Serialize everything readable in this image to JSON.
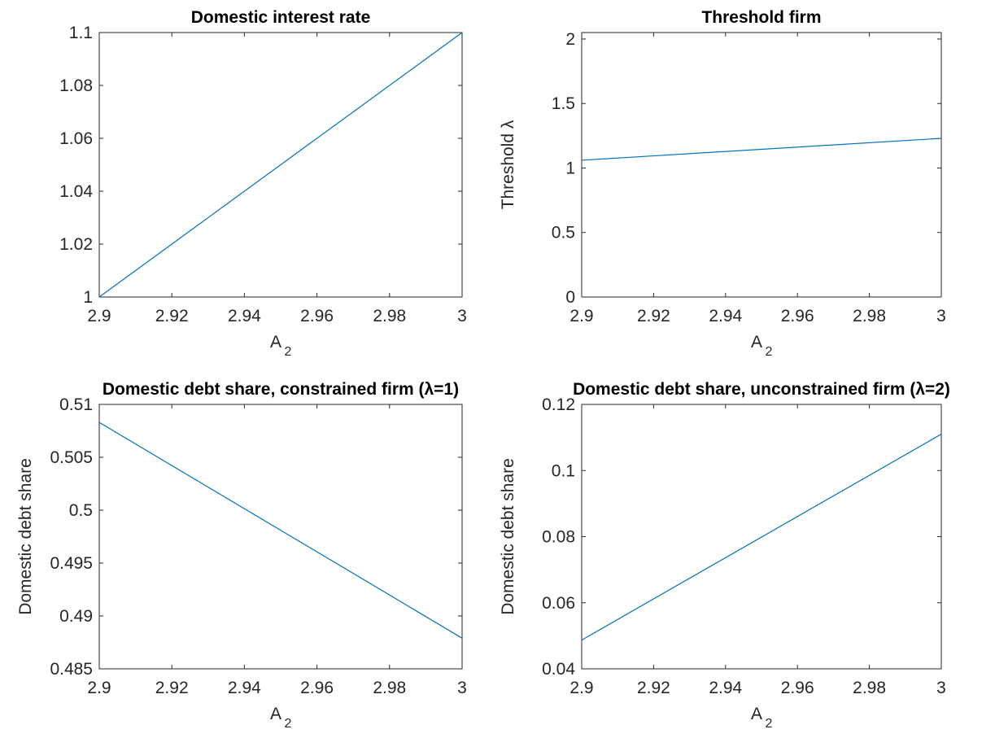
{
  "chart_data": [
    {
      "type": "line",
      "title": "Domestic interest rate",
      "xlabel": "A",
      "xlabel_subscript": "2",
      "x": [
        2.9,
        3
      ],
      "values": [
        1,
        1.1
      ],
      "color": "#0072bd",
      "xlim": [
        2.9,
        3
      ],
      "xticks": [
        2.9,
        2.92,
        2.94,
        2.96,
        2.98,
        3
      ],
      "ylim": [
        1,
        1.1
      ],
      "yticks": [
        1,
        1.02,
        1.04,
        1.06,
        1.08,
        1.1
      ]
    },
    {
      "type": "line",
      "title": "Threshold firm",
      "xlabel": "A",
      "xlabel_subscript": "2",
      "ylabel": "Threshold λ",
      "x": [
        2.9,
        3
      ],
      "values": [
        1.06,
        1.23
      ],
      "color": "#0072bd",
      "xlim": [
        2.9,
        3
      ],
      "xticks": [
        2.9,
        2.92,
        2.94,
        2.96,
        2.98,
        3
      ],
      "ylim": [
        0,
        2.05
      ],
      "yticks": [
        0,
        0.5,
        1,
        1.5,
        2
      ]
    },
    {
      "type": "line",
      "title": "Domestic debt share, constrained firm (λ=1)",
      "xlabel": "A",
      "xlabel_subscript": "2",
      "ylabel": "Domestic debt share",
      "x": [
        2.9,
        3
      ],
      "values": [
        0.5083,
        0.4879
      ],
      "color": "#0072bd",
      "xlim": [
        2.9,
        3
      ],
      "xticks": [
        2.9,
        2.92,
        2.94,
        2.96,
        2.98,
        3
      ],
      "ylim": [
        0.485,
        0.51
      ],
      "yticks": [
        0.485,
        0.49,
        0.495,
        0.5,
        0.505,
        0.51
      ]
    },
    {
      "type": "line",
      "title": "Domestic debt share, unconstrained firm (λ=2)",
      "xlabel": "A",
      "xlabel_subscript": "2",
      "ylabel": "Domestic debt share",
      "x": [
        2.9,
        3
      ],
      "values": [
        0.0487,
        0.111
      ],
      "color": "#0072bd",
      "xlim": [
        2.9,
        3
      ],
      "xticks": [
        2.9,
        2.92,
        2.94,
        2.96,
        2.98,
        3
      ],
      "ylim": [
        0.04,
        0.12
      ],
      "yticks": [
        0.04,
        0.06,
        0.08,
        0.1,
        0.12
      ]
    }
  ]
}
